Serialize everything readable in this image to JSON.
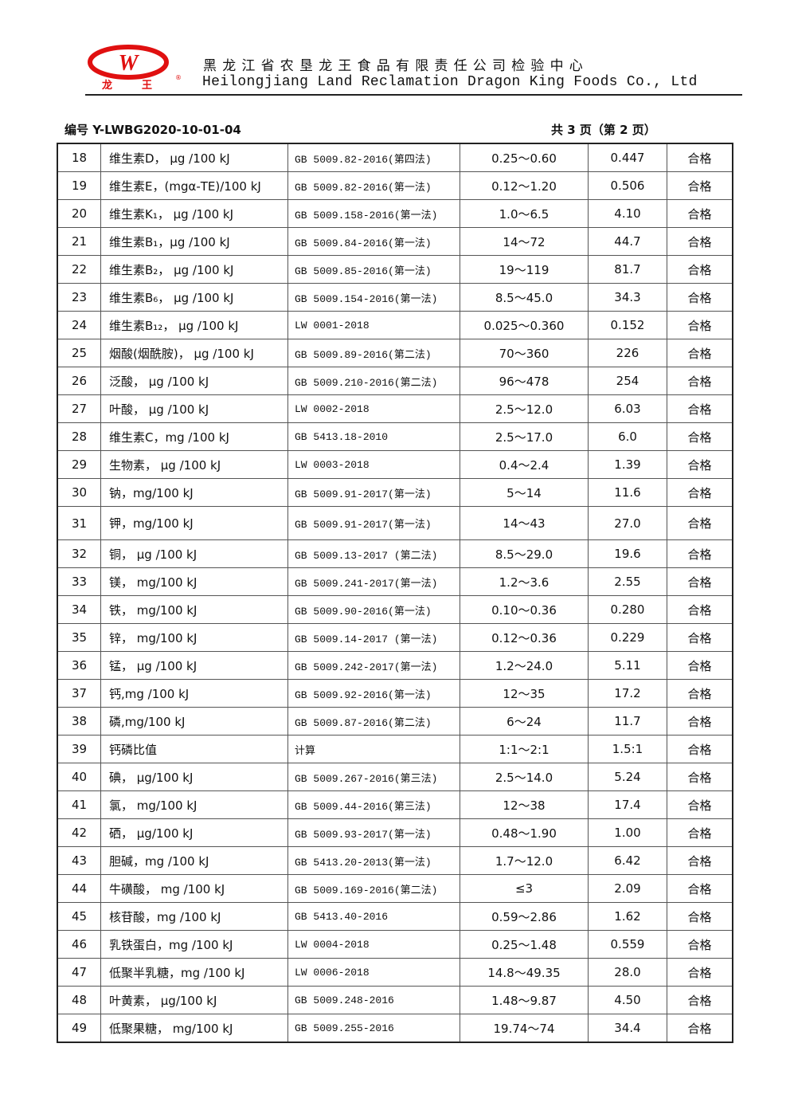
{
  "header": {
    "logo_text": "龙 王",
    "company_cn": "黑龙江省农垦龙王食品有限责任公司检验中心",
    "company_en": "Heilongjiang Land Reclamation Dragon King Foods Co., Ltd",
    "doc_no": "编号 Y-LWBG2020-10-01-04",
    "page_info": "共 3 页（第 2 页）",
    "brand_color": "#e01010"
  },
  "rows": [
    [
      "18",
      "维生素D， μg /100 kJ",
      "GB 5009.82-2016(第四法)",
      "0.25～0.60",
      "0.447",
      "合格"
    ],
    [
      "19",
      "维生素E，(mgα-TE)/100 kJ",
      "GB 5009.82-2016(第一法)",
      "0.12～1.20",
      "0.506",
      "合格"
    ],
    [
      "20",
      "维生素K₁， μg /100 kJ",
      "GB 5009.158-2016(第一法)",
      "1.0～6.5",
      "4.10",
      "合格"
    ],
    [
      "21",
      "维生素B₁，μg /100 kJ",
      "GB 5009.84-2016(第一法)",
      "14～72",
      "44.7",
      "合格"
    ],
    [
      "22",
      "维生素B₂， μg /100 kJ",
      "GB 5009.85-2016(第一法)",
      "19～119",
      "81.7",
      "合格"
    ],
    [
      "23",
      "维生素B₆， μg /100 kJ",
      "GB 5009.154-2016(第一法)",
      "8.5～45.0",
      "34.3",
      "合格"
    ],
    [
      "24",
      "维生素B₁₂， μg /100 kJ",
      "LW 0001-2018",
      "0.025～0.360",
      "0.152",
      "合格"
    ],
    [
      "25",
      "烟酸(烟酰胺)， μg /100 kJ",
      "GB 5009.89-2016(第二法)",
      "70～360",
      "226",
      "合格"
    ],
    [
      "26",
      "泛酸， μg /100 kJ",
      "GB 5009.210-2016(第二法)",
      "96～478",
      "254",
      "合格"
    ],
    [
      "27",
      "叶酸， μg /100 kJ",
      "LW 0002-2018",
      "2.5～12.0",
      "6.03",
      "合格"
    ],
    [
      "28",
      "维生素C，mg /100 kJ",
      "GB 5413.18-2010",
      "2.5～17.0",
      "6.0",
      "合格"
    ],
    [
      "29",
      "生物素， μg /100 kJ",
      "LW 0003-2018",
      "0.4～2.4",
      "1.39",
      "合格"
    ],
    [
      "30",
      "钠，mg/100 kJ",
      "GB 5009.91-2017(第一法)",
      "5～14",
      "11.6",
      "合格"
    ],
    [
      "31",
      "钾，mg/100 kJ",
      "GB 5009.91-2017(第一法)",
      "14～43",
      "27.0",
      "合格"
    ],
    [
      "32",
      "铜， μg /100 kJ",
      "GB 5009.13-2017 (第二法)",
      "8.5～29.0",
      "19.6",
      "合格"
    ],
    [
      "33",
      "镁， mg/100 kJ",
      "GB 5009.241-2017(第一法)",
      "1.2～3.6",
      "2.55",
      "合格"
    ],
    [
      "34",
      "铁， mg/100 kJ",
      "GB 5009.90-2016(第一法)",
      "0.10～0.36",
      "0.280",
      "合格"
    ],
    [
      "35",
      "锌， mg/100 kJ",
      "GB 5009.14-2017 (第一法)",
      "0.12～0.36",
      "0.229",
      "合格"
    ],
    [
      "36",
      "锰， μg /100 kJ",
      "GB 5009.242-2017(第一法)",
      "1.2～24.0",
      "5.11",
      "合格"
    ],
    [
      "37",
      "钙,mg /100 kJ",
      "GB 5009.92-2016(第一法)",
      "12～35",
      "17.2",
      "合格"
    ],
    [
      "38",
      "磷,mg/100 kJ",
      "GB 5009.87-2016(第二法)",
      "6～24",
      "11.7",
      "合格"
    ],
    [
      "39",
      "钙磷比值",
      "计算",
      "1:1～2:1",
      "1.5:1",
      "合格"
    ],
    [
      "40",
      "碘， μg/100 kJ",
      "GB 5009.267-2016(第三法)",
      "2.5～14.0",
      "5.24",
      "合格"
    ],
    [
      "41",
      "氯， mg/100 kJ",
      "GB 5009.44-2016(第三法)",
      "12～38",
      "17.4",
      "合格"
    ],
    [
      "42",
      "硒， μg/100 kJ",
      "GB 5009.93-2017(第一法)",
      "0.48～1.90",
      "1.00",
      "合格"
    ],
    [
      "43",
      "胆碱，mg /100 kJ",
      "GB 5413.20-2013(第一法)",
      "1.7～12.0",
      "6.42",
      "合格"
    ],
    [
      "44",
      "牛磺酸， mg /100 kJ",
      "GB 5009.169-2016(第二法)",
      "≤3",
      "2.09",
      "合格"
    ],
    [
      "45",
      "核苷酸，mg /100 kJ",
      "GB 5413.40-2016",
      "0.59～2.86",
      "1.62",
      "合格"
    ],
    [
      "46",
      "乳铁蛋白，mg /100 kJ",
      "LW 0004-2018",
      "0.25～1.48",
      "0.559",
      "合格"
    ],
    [
      "47",
      "低聚半乳糖，mg /100 kJ",
      "LW 0006-2018",
      "14.8～49.35",
      "28.0",
      "合格"
    ],
    [
      "48",
      "叶黄素， μg/100 kJ",
      "GB 5009.248-2016",
      "1.48～9.87",
      "4.50",
      "合格"
    ],
    [
      "49",
      "低聚果糖， mg/100 kJ",
      "GB 5009.255-2016",
      "19.74～74",
      "34.4",
      "合格"
    ]
  ]
}
